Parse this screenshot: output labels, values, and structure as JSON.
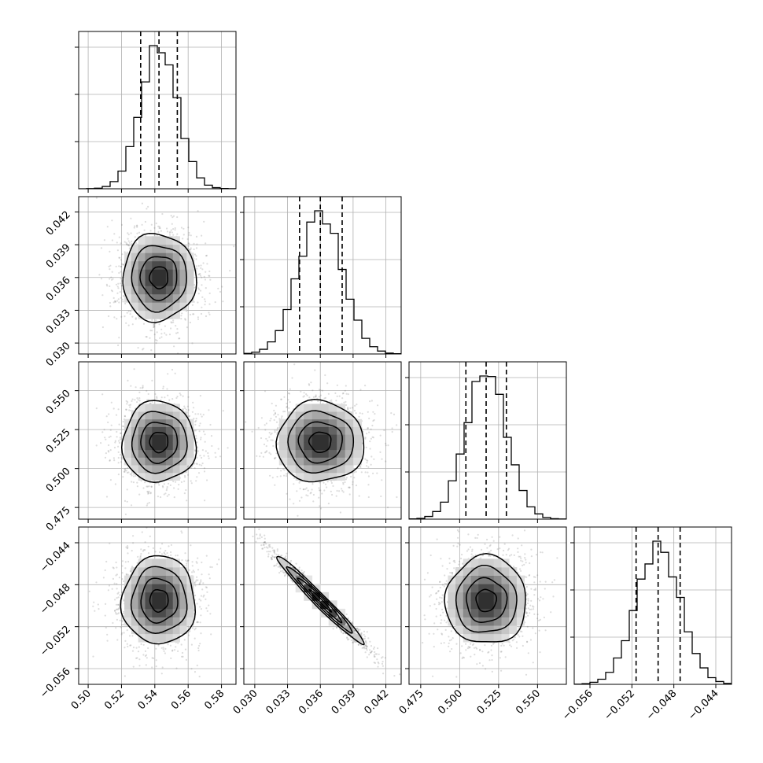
{
  "chart_data": {
    "type": "corner",
    "parameters": [
      {
        "index": 0,
        "mean": 0.5425,
        "sd": 0.011,
        "range": [
          0.4943,
          0.5887
        ],
        "ticks": [
          0.5,
          0.52,
          0.54,
          0.56,
          0.58
        ],
        "tick_labels": [
          "0.50",
          "0.52",
          "0.54",
          "0.56",
          "0.58"
        ],
        "quantiles": [
          0.5315,
          0.5425,
          0.5535
        ]
      },
      {
        "index": 1,
        "mean": 0.036,
        "sd": 0.002,
        "range": [
          0.029,
          0.0434
        ],
        "ticks": [
          0.03,
          0.033,
          0.036,
          0.039,
          0.042
        ],
        "tick_labels": [
          "0.030",
          "0.033",
          "0.036",
          "0.039",
          "0.042"
        ],
        "quantiles": [
          0.0341,
          0.036,
          0.038
        ]
      },
      {
        "index": 2,
        "mean": 0.517,
        "sd": 0.013,
        "range": [
          0.4675,
          0.5685
        ],
        "ticks": [
          0.475,
          0.5,
          0.525,
          0.55
        ],
        "tick_labels": [
          "0.475",
          "0.500",
          "0.525",
          "0.550"
        ],
        "quantiles": [
          0.504,
          0.517,
          0.53
        ]
      },
      {
        "index": 3,
        "mean": -0.0495,
        "sd": 0.0021,
        "range": [
          -0.0575,
          -0.0425
        ],
        "ticks": [
          -0.056,
          -0.052,
          -0.048,
          -0.044
        ],
        "tick_labels": [
          "−0.056",
          "−0.052",
          "−0.048",
          "−0.044"
        ],
        "quantiles": [
          -0.0516,
          -0.0495,
          -0.0474
        ]
      }
    ],
    "correlations": [
      [
        1,
        0,
        0,
        0
      ],
      [
        0,
        1,
        0,
        -0.98
      ],
      [
        0,
        0,
        1,
        0
      ],
      [
        0,
        -0.98,
        0,
        1
      ]
    ],
    "histogram_bins": 20,
    "contour_levels_sigma": [
      0.5,
      1.0,
      1.5,
      2.0
    ],
    "grid": true,
    "xlabel": "",
    "ylabel": "",
    "title": ""
  }
}
